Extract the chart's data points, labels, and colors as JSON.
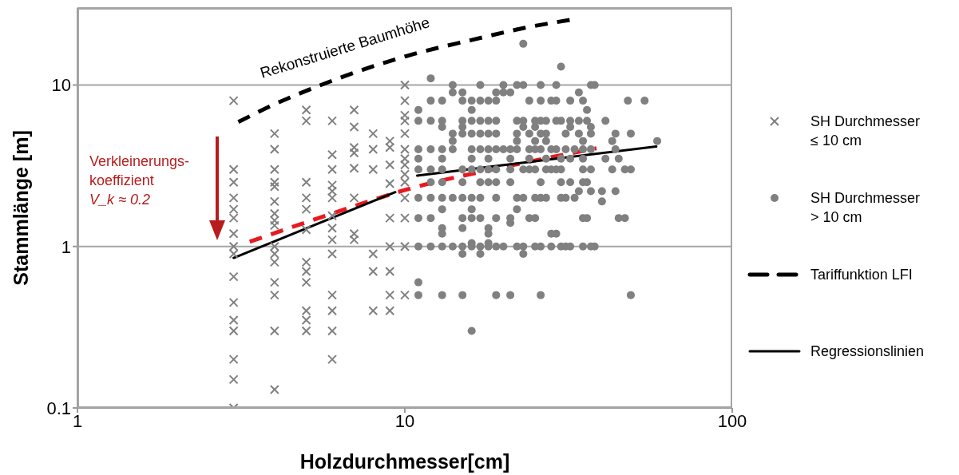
{
  "chart_data": {
    "type": "scatter",
    "xlabel": "Holzdurchmesser[cm]",
    "ylabel": "Stammlänge [m]",
    "log": "xy",
    "xlim": [
      1,
      100
    ],
    "xticks": [
      1,
      10,
      100
    ],
    "ylim": [
      0.1,
      30
    ],
    "yticks": [
      0.1,
      1,
      10
    ],
    "grid": "y",
    "legend": "right",
    "annotations": [
      "Rekonstruierte Baumhöhe",
      "Verkleinerungs-\nkoeffizient\nV_k ≈ 0.2"
    ],
    "series": [
      {
        "name": "SH Durchmesser ≤ 10 cm",
        "marker": "cross",
        "color": "#808080",
        "x": [
          3,
          3,
          3,
          3,
          3,
          3,
          3,
          3,
          3,
          3,
          3,
          3,
          3,
          3,
          3,
          3,
          4,
          4,
          4,
          4,
          4,
          4,
          4,
          4,
          4,
          4,
          4,
          4,
          4,
          4,
          4,
          4,
          5,
          5,
          5,
          5,
          5,
          5,
          5,
          5,
          5,
          5,
          5,
          5,
          6,
          6,
          6,
          6,
          6,
          6,
          6,
          6,
          6,
          6,
          6,
          6,
          6,
          6,
          7,
          7,
          7,
          7,
          7,
          7,
          7,
          7,
          8,
          8,
          8,
          8,
          8,
          8,
          9,
          9,
          9,
          9,
          9,
          9,
          9,
          9,
          9,
          10,
          10,
          10,
          10,
          10,
          10,
          10,
          10,
          10,
          10,
          10,
          10,
          10,
          10
        ],
        "values": [
          8,
          3,
          2.5,
          2,
          1.7,
          1.5,
          1.2,
          1,
          0.9,
          0.65,
          0.45,
          0.35,
          0.3,
          0.2,
          0.15,
          0.1,
          5,
          4,
          3,
          2.5,
          2.35,
          1.9,
          1.6,
          1.45,
          1.35,
          1,
          0.9,
          0.8,
          0.6,
          0.5,
          0.3,
          0.13,
          7,
          6,
          2.5,
          2,
          1.7,
          1.27,
          0.8,
          0.7,
          0.6,
          0.4,
          0.35,
          0.3,
          6,
          3.7,
          3,
          2.4,
          2.2,
          2,
          1.55,
          1.3,
          1.1,
          0.9,
          0.5,
          0.4,
          0.3,
          0.2,
          7,
          5.5,
          4.1,
          3.8,
          3.05,
          2,
          1.2,
          1.1,
          5,
          4,
          3,
          0.9,
          0.7,
          0.4,
          4.5,
          4.1,
          3.2,
          2.45,
          1.5,
          1,
          0.7,
          0.5,
          0.4,
          10,
          8,
          6.5,
          6,
          5,
          4,
          3.5,
          3.2,
          2.8,
          2.5,
          2,
          1.5,
          1,
          0.5
        ]
      },
      {
        "name": "SH Durchmesser > 10 cm",
        "marker": "circle",
        "color": "#808080",
        "x": [
          14,
          17,
          20,
          22,
          23,
          26,
          29,
          37,
          38,
          12,
          30,
          23,
          14,
          15,
          19,
          20,
          21,
          34,
          12,
          13,
          15,
          16,
          17,
          18,
          19,
          24,
          26,
          28,
          29,
          32,
          35,
          48,
          54,
          11,
          16,
          36,
          11,
          12,
          13,
          15,
          16,
          17,
          18,
          19,
          22,
          23,
          25,
          26,
          27,
          29,
          30,
          32,
          34,
          36,
          41,
          13,
          15,
          23,
          25,
          32,
          37,
          14,
          15,
          16,
          17,
          18,
          19,
          22,
          24,
          26,
          27,
          31,
          34,
          37,
          44,
          49,
          14,
          22,
          25,
          27,
          35,
          43,
          59,
          11,
          12,
          13,
          14,
          16,
          17,
          18,
          19,
          20,
          21,
          22,
          24,
          25,
          26,
          28,
          29,
          31,
          33,
          35,
          37,
          44,
          11,
          13,
          16,
          18,
          21,
          24,
          27,
          30,
          32,
          35,
          41,
          45,
          11,
          12,
          13,
          15,
          16,
          17,
          18,
          19,
          21,
          23,
          24,
          25,
          27,
          28,
          29,
          30,
          35,
          37,
          43,
          47,
          49,
          12,
          13,
          15,
          17,
          18,
          19,
          21,
          26,
          30,
          32,
          35,
          36,
          34,
          37,
          40,
          44,
          11,
          12,
          13,
          14,
          15,
          16,
          17,
          19,
          22,
          23,
          25,
          26,
          27,
          30,
          31,
          33,
          40,
          13,
          16,
          22,
          11,
          12,
          15,
          16,
          17,
          19,
          21,
          24,
          25,
          35,
          36,
          45,
          47,
          21,
          13,
          15,
          18,
          13,
          18,
          28,
          29,
          16,
          18,
          11,
          12,
          13,
          14,
          15,
          16,
          17,
          18,
          19,
          20,
          22,
          23,
          25,
          26,
          28,
          30,
          31,
          32,
          35,
          37,
          38,
          15,
          17,
          23,
          11,
          11,
          13,
          15,
          19,
          21,
          26,
          49,
          16
        ],
        "values": [
          10,
          10,
          10,
          10,
          10,
          10,
          10,
          10,
          10,
          11,
          13,
          18,
          9,
          9,
          9,
          9,
          9,
          9,
          8,
          8,
          8,
          8,
          8,
          8,
          8,
          8,
          8,
          8,
          8,
          8,
          8,
          8,
          8,
          7,
          7,
          7,
          6,
          6,
          6,
          6,
          6,
          6,
          6,
          6,
          6,
          6,
          6,
          6,
          6,
          6,
          6,
          6,
          6,
          6,
          6,
          5.5,
          5.5,
          5.5,
          5.5,
          5.5,
          5.5,
          5,
          5,
          5,
          5,
          5,
          5,
          5,
          5,
          5,
          5,
          5,
          5,
          5,
          5,
          5,
          4.5,
          4.5,
          4.5,
          4.5,
          4.5,
          4.5,
          4.5,
          4,
          4,
          4,
          4,
          4,
          4,
          4,
          4,
          4,
          4,
          4,
          4,
          4,
          4,
          4,
          4,
          4,
          4,
          4,
          4,
          4,
          3.5,
          3.5,
          3.5,
          3.5,
          3.5,
          3.5,
          3.5,
          3.5,
          3.5,
          3.5,
          3.5,
          3.5,
          3,
          3,
          3,
          3,
          3,
          3,
          3,
          3,
          3,
          3,
          3,
          3,
          3,
          3,
          3,
          3,
          3,
          3,
          3,
          3,
          3,
          2.5,
          2.5,
          2.5,
          2.5,
          2.5,
          2.5,
          2.5,
          2.5,
          2.5,
          2.5,
          2.5,
          2.5,
          2.2,
          2.2,
          2.2,
          2.2,
          2,
          2,
          2,
          2,
          2,
          2,
          2,
          2,
          2,
          2,
          2,
          2,
          2,
          2,
          2,
          2,
          1.9,
          1.7,
          1.7,
          1.7,
          1.5,
          1.5,
          1.5,
          1.5,
          1.5,
          1.5,
          1.5,
          1.5,
          1.5,
          1.5,
          1.5,
          1.5,
          1.5,
          1.4,
          1.3,
          1.3,
          1.3,
          1.2,
          1.2,
          1.2,
          1.2,
          1.05,
          1.05,
          1,
          1,
          1,
          1,
          1,
          1,
          1,
          1,
          1,
          1,
          1,
          1,
          1,
          1,
          1,
          1,
          1,
          1,
          1,
          1,
          1,
          0.9,
          0.9,
          0.9,
          0.6,
          0.5,
          0.5,
          0.5,
          0.5,
          0.5,
          0.5,
          0.5,
          0.3
        ]
      },
      {
        "name": "Tariffunktion LFI",
        "type": "line",
        "marker": "none",
        "line_style": "dashed",
        "color": "#000000",
        "x": [
          3.1,
          4,
          5.4,
          7.5,
          10.7,
          16,
          23,
          32.7
        ],
        "values": [
          5.9,
          7.6,
          9.8,
          12.5,
          15.6,
          19,
          22.5,
          25.5
        ]
      },
      {
        "type": "line",
        "marker": "none",
        "line_style": "dashed",
        "color": "#e8191f",
        "x": [
          3.36,
          6,
          10.5,
          20,
          38.5
        ],
        "values": [
          1.07,
          1.6,
          2.3,
          3.1,
          4.06
        ]
      },
      {
        "name": "Regressionslinien",
        "type": "line",
        "marker": "none",
        "line_style": "solid",
        "color": "#000000",
        "x": [
          3,
          9.35,
          10,
          10.9,
          58.6
        ],
        "values": [
          0.85,
          2.17,
          null,
          2.75,
          4.16
        ]
      }
    ]
  }
}
